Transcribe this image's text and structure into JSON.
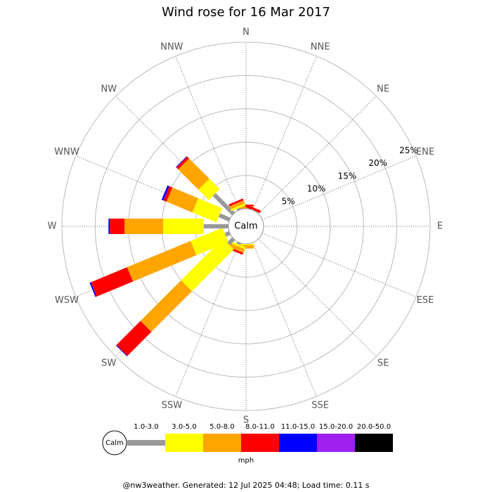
{
  "chart_data": {
    "type": "windrose",
    "title": "Wind rose for 16 Mar 2017",
    "categories": [
      "N",
      "NNE",
      "NE",
      "ENE",
      "E",
      "ESE",
      "SE",
      "SSE",
      "S",
      "SSW",
      "SW",
      "WSW",
      "W",
      "WNW",
      "NW",
      "NNW"
    ],
    "series": [
      {
        "name": "1.0-3.0",
        "color": "#999999",
        "values": [
          0,
          0,
          0,
          0,
          0,
          0,
          0,
          0,
          0,
          0.3,
          1.1,
          0.7,
          3.7,
          1.7,
          4.1,
          0.3
        ]
      },
      {
        "name": "3.0-5.0",
        "color": "#ffff00",
        "values": [
          0,
          0,
          0,
          0,
          0,
          0,
          0,
          0,
          0.2,
          0.3,
          8.9,
          5.2,
          6.1,
          3.9,
          2.2,
          0.3
        ]
      },
      {
        "name": "5.0-8.0",
        "color": "#ffa500",
        "values": [
          0.4,
          0,
          0,
          0,
          0,
          0,
          0,
          0,
          0.5,
          0.6,
          8.6,
          10.3,
          5.8,
          4.2,
          4.3,
          0.5
        ]
      },
      {
        "name": "8.0-11.0",
        "color": "#ff0000",
        "values": [
          0.2,
          0.4,
          0,
          0,
          0,
          0,
          0,
          0,
          0,
          0.3,
          5.1,
          5.9,
          2.2,
          0.5,
          0.4,
          0.3
        ]
      },
      {
        "name": "11.0-15.0",
        "color": "#0000ff",
        "values": [
          0,
          0,
          0,
          0,
          0,
          0,
          0,
          0,
          0,
          0,
          0.1,
          0.2,
          0.2,
          0.3,
          0.1,
          0
        ]
      },
      {
        "name": "15.0-20.0",
        "color": "#a020f0",
        "values": [
          0,
          0,
          0,
          0,
          0,
          0,
          0,
          0,
          0,
          0,
          0,
          0,
          0,
          0,
          0,
          0
        ]
      },
      {
        "name": "20.0-50.0",
        "color": "#000000",
        "values": [
          0,
          0,
          0,
          0,
          0,
          0,
          0,
          0,
          0,
          0,
          0,
          0,
          0,
          0,
          0,
          0
        ]
      }
    ],
    "rlim": [
      0,
      25
    ],
    "rticks": [
      {
        "value": 5,
        "label": "5%"
      },
      {
        "value": 10,
        "label": "10%"
      },
      {
        "value": 15,
        "label": "15%"
      },
      {
        "value": 20,
        "label": "20%"
      },
      {
        "value": 25,
        "label": "25%"
      }
    ],
    "calm_label": "Calm",
    "legend_unit": "mph",
    "footer": "@nw3weather. Generated: 12 Jul 2025 04:48; Load time: 0.11 s"
  }
}
